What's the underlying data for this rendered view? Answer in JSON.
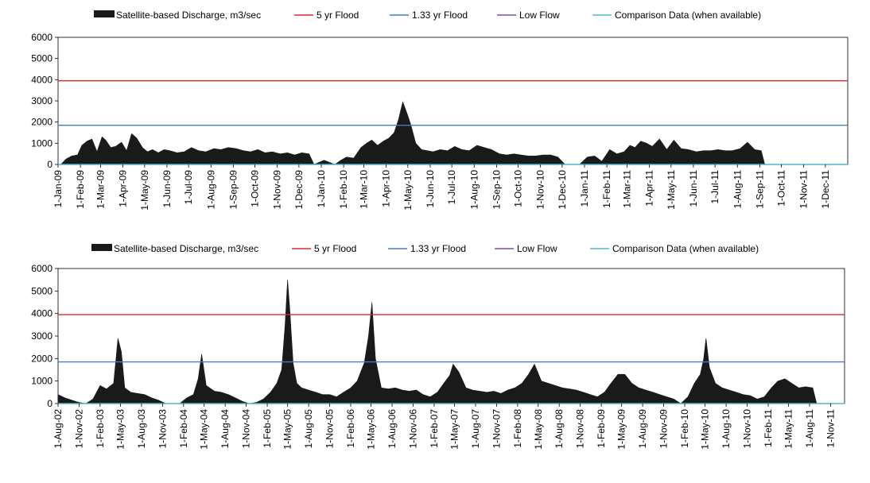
{
  "chart_data": [
    {
      "type": "area",
      "title": "",
      "xlabel": "",
      "ylabel": "",
      "ylim": [
        0,
        6000
      ],
      "yticks": [
        0,
        1000,
        2000,
        3000,
        4000,
        5000,
        6000
      ],
      "xlim": [
        "2009-01-01",
        "2012-01-01"
      ],
      "xticks": [
        "1-Jan-09",
        "1-Feb-09",
        "1-Mar-09",
        "1-Apr-09",
        "1-May-09",
        "1-Jun-09",
        "1-Jul-09",
        "1-Aug-09",
        "1-Sep-09",
        "1-Oct-09",
        "1-Nov-09",
        "1-Dec-09",
        "1-Jan-10",
        "1-Feb-10",
        "1-Mar-10",
        "1-Apr-10",
        "1-May-10",
        "1-Jun-10",
        "1-Jul-10",
        "1-Aug-10",
        "1-Sep-10",
        "1-Oct-10",
        "1-Nov-10",
        "1-Dec-10",
        "1-Jan-11",
        "1-Feb-11",
        "1-Mar-11",
        "1-Apr-11",
        "1-May-11",
        "1-Jun-11",
        "1-Jul-11",
        "1-Aug-11",
        "1-Sep-11",
        "1-Oct-11",
        "1-Nov-11",
        "1-Dec-11"
      ],
      "grid": false,
      "legend_position": "top",
      "legend": [
        {
          "label": "Satellite-based Discharge, m3/sec",
          "color": "#1a1a1a",
          "kind": "area"
        },
        {
          "label": "5 yr Flood",
          "color": "#e0282a",
          "kind": "line"
        },
        {
          "label": "1.33 yr Flood",
          "color": "#4a7bbf",
          "kind": "line"
        },
        {
          "label": "Low Flow",
          "color": "#7b4fa3",
          "kind": "line"
        },
        {
          "label": "Comparison Data (when available)",
          "color": "#4bb8c8",
          "kind": "line"
        }
      ],
      "reference_lines": {
        "five_yr_flood": 3950,
        "one_33_yr_flood": 1850,
        "low_flow": 0,
        "comparison": 0
      },
      "series": [
        {
          "name": "Satellite-based Discharge, m3/sec",
          "x": [
            "2009-01-05",
            "2009-01-12",
            "2009-01-20",
            "2009-01-28",
            "2009-02-03",
            "2009-02-10",
            "2009-02-17",
            "2009-02-24",
            "2009-03-03",
            "2009-03-08",
            "2009-03-15",
            "2009-03-22",
            "2009-03-30",
            "2009-04-06",
            "2009-04-13",
            "2009-04-20",
            "2009-04-28",
            "2009-05-05",
            "2009-05-12",
            "2009-05-20",
            "2009-05-28",
            "2009-06-05",
            "2009-06-15",
            "2009-06-25",
            "2009-07-05",
            "2009-07-15",
            "2009-07-25",
            "2009-08-05",
            "2009-08-15",
            "2009-08-25",
            "2009-09-05",
            "2009-09-15",
            "2009-09-25",
            "2009-10-05",
            "2009-10-15",
            "2009-10-25",
            "2009-11-05",
            "2009-11-15",
            "2009-11-25",
            "2009-12-05",
            "2009-12-15",
            "2009-12-22",
            "2010-01-05",
            "2010-01-12",
            "2010-01-20",
            "2010-01-28",
            "2010-02-05",
            "2010-02-15",
            "2010-02-25",
            "2010-03-05",
            "2010-03-12",
            "2010-03-20",
            "2010-03-28",
            "2010-04-05",
            "2010-04-12",
            "2010-04-18",
            "2010-04-24",
            "2010-04-30",
            "2010-05-05",
            "2010-05-12",
            "2010-05-20",
            "2010-05-28",
            "2010-06-05",
            "2010-06-15",
            "2010-06-25",
            "2010-07-05",
            "2010-07-15",
            "2010-07-25",
            "2010-08-05",
            "2010-08-15",
            "2010-08-25",
            "2010-09-05",
            "2010-09-15",
            "2010-09-25",
            "2010-10-05",
            "2010-10-15",
            "2010-10-25",
            "2010-11-05",
            "2010-11-15",
            "2010-11-25",
            "2010-12-05",
            "2010-12-15",
            "2010-12-25",
            "2011-01-05",
            "2011-01-15",
            "2011-01-25",
            "2011-02-05",
            "2011-02-15",
            "2011-02-25",
            "2011-03-05",
            "2011-03-12",
            "2011-03-20",
            "2011-03-28",
            "2011-04-05",
            "2011-04-15",
            "2011-04-25",
            "2011-05-05",
            "2011-05-15",
            "2011-05-25",
            "2011-06-05",
            "2011-06-15",
            "2011-06-25",
            "2011-07-05",
            "2011-07-15",
            "2011-07-25",
            "2011-08-05",
            "2011-08-15",
            "2011-08-25",
            "2011-09-03",
            "2011-09-08"
          ],
          "values": [
            0,
            250,
            400,
            450,
            900,
            1100,
            1200,
            600,
            1300,
            1150,
            800,
            850,
            1050,
            650,
            1450,
            1250,
            800,
            600,
            700,
            550,
            700,
            650,
            550,
            600,
            800,
            650,
            600,
            750,
            700,
            800,
            750,
            650,
            600,
            700,
            550,
            600,
            500,
            550,
            450,
            550,
            500,
            0,
            200,
            100,
            0,
            200,
            350,
            300,
            800,
            1000,
            1150,
            900,
            1100,
            1250,
            1500,
            2100,
            2950,
            2400,
            1900,
            1000,
            700,
            650,
            600,
            700,
            650,
            850,
            700,
            650,
            900,
            800,
            700,
            500,
            450,
            500,
            450,
            400,
            400,
            450,
            450,
            350,
            0,
            0,
            0,
            350,
            400,
            150,
            700,
            500,
            600,
            900,
            800,
            1100,
            1000,
            850,
            1200,
            700,
            1150,
            750,
            700,
            600,
            650,
            650,
            700,
            650,
            650,
            750,
            1050,
            700,
            650,
            0
          ],
          "gaps_after": []
        }
      ]
    },
    {
      "type": "area",
      "title": "",
      "xlabel": "",
      "ylabel": "",
      "ylim": [
        0,
        6000
      ],
      "yticks": [
        0,
        1000,
        2000,
        3000,
        4000,
        5000,
        6000
      ],
      "xlim": [
        "2002-08-01",
        "2012-01-01"
      ],
      "xticks": [
        "1-Aug-02",
        "1-Nov-02",
        "1-Feb-03",
        "1-May-03",
        "1-Aug-03",
        "1-Nov-03",
        "1-Feb-04",
        "1-May-04",
        "1-Aug-04",
        "1-Nov-04",
        "1-Feb-05",
        "1-May-05",
        "1-Aug-05",
        "1-Nov-05",
        "1-Feb-06",
        "1-May-06",
        "1-Aug-06",
        "1-Nov-06",
        "1-Feb-07",
        "1-May-07",
        "1-Aug-07",
        "1-Nov-07",
        "1-Feb-08",
        "1-May-08",
        "1-Aug-08",
        "1-Nov-08",
        "1-Feb-09",
        "1-May-09",
        "1-Aug-09",
        "1-Nov-09",
        "1-Feb-10",
        "1-May-10",
        "1-Aug-10",
        "1-Nov-10",
        "1-Feb-11",
        "1-May-11",
        "1-Aug-11",
        "1-Nov-11"
      ],
      "grid": false,
      "legend_position": "top",
      "legend": [
        {
          "label": "Satellite-based Discharge, m3/sec",
          "color": "#1a1a1a",
          "kind": "area"
        },
        {
          "label": "5 yr Flood",
          "color": "#e0282a",
          "kind": "line"
        },
        {
          "label": "1.33 yr Flood",
          "color": "#4a7bbf",
          "kind": "line"
        },
        {
          "label": "Low Flow",
          "color": "#7b4fa3",
          "kind": "line"
        },
        {
          "label": "Comparison Data (when available)",
          "color": "#4bb8c8",
          "kind": "line"
        }
      ],
      "reference_lines": {
        "five_yr_flood": 3950,
        "one_33_yr_flood": 1850,
        "low_flow": 0,
        "comparison": 0
      },
      "series": [
        {
          "name": "Satellite-based Discharge, m3/sec",
          "x": [
            "2002-08-01",
            "2002-09-01",
            "2002-10-01",
            "2002-11-01",
            "2002-12-01",
            "2003-01-01",
            "2003-02-01",
            "2003-03-01",
            "2003-04-01",
            "2003-04-20",
            "2003-05-05",
            "2003-05-20",
            "2003-06-15",
            "2003-07-15",
            "2003-08-15",
            "2003-09-15",
            "2003-10-15",
            "2003-11-15",
            "2003-12-15",
            "2004-01-15",
            "2004-02-15",
            "2004-03-15",
            "2004-04-05",
            "2004-04-20",
            "2004-05-10",
            "2004-06-15",
            "2004-07-15",
            "2004-08-15",
            "2004-09-15",
            "2004-10-15",
            "2004-11-15",
            "2004-12-15",
            "2005-01-15",
            "2005-02-15",
            "2005-03-15",
            "2005-04-05",
            "2005-04-20",
            "2005-05-01",
            "2005-05-10",
            "2005-05-25",
            "2005-06-10",
            "2005-07-01",
            "2005-08-01",
            "2005-09-01",
            "2005-10-01",
            "2005-11-01",
            "2005-12-01",
            "2006-01-01",
            "2006-02-01",
            "2006-03-01",
            "2006-04-01",
            "2006-04-20",
            "2006-05-05",
            "2006-05-20",
            "2006-06-15",
            "2006-07-15",
            "2006-08-15",
            "2006-09-15",
            "2006-10-15",
            "2006-11-15",
            "2006-12-15",
            "2007-01-15",
            "2007-02-15",
            "2007-03-15",
            "2007-04-10",
            "2007-04-25",
            "2007-05-20",
            "2007-06-20",
            "2007-07-20",
            "2007-08-20",
            "2007-09-20",
            "2007-10-20",
            "2007-11-20",
            "2007-12-20",
            "2008-01-20",
            "2008-02-20",
            "2008-03-20",
            "2008-04-15",
            "2008-05-15",
            "2008-06-15",
            "2008-07-15",
            "2008-08-15",
            "2008-09-15",
            "2008-10-15",
            "2008-11-15",
            "2008-12-15",
            "2009-01-15",
            "2009-02-15",
            "2009-03-15",
            "2009-04-15",
            "2009-05-15",
            "2009-06-15",
            "2009-07-15",
            "2009-08-15",
            "2009-09-15",
            "2009-10-15",
            "2009-11-15",
            "2009-12-15",
            "2010-01-15",
            "2010-02-15",
            "2010-03-15",
            "2010-04-10",
            "2010-04-25",
            "2010-05-05",
            "2010-05-20",
            "2010-06-15",
            "2010-07-15",
            "2010-08-15",
            "2010-09-15",
            "2010-10-15",
            "2010-11-15",
            "2010-12-15",
            "2011-01-15",
            "2011-02-15",
            "2011-03-15",
            "2011-04-15",
            "2011-05-15",
            "2011-06-15",
            "2011-07-15",
            "2011-08-15",
            "2011-09-01"
          ],
          "values": [
            400,
            250,
            150,
            50,
            0,
            200,
            800,
            650,
            900,
            2900,
            2300,
            700,
            500,
            450,
            400,
            250,
            150,
            0,
            0,
            0,
            250,
            400,
            1100,
            2200,
            800,
            550,
            500,
            400,
            250,
            100,
            0,
            50,
            200,
            500,
            900,
            1500,
            3500,
            5500,
            4300,
            1800,
            900,
            700,
            600,
            500,
            400,
            400,
            300,
            500,
            700,
            1000,
            1800,
            3000,
            4500,
            2000,
            700,
            650,
            700,
            600,
            550,
            600,
            400,
            300,
            500,
            900,
            1250,
            1750,
            1400,
            700,
            600,
            550,
            500,
            550,
            450,
            600,
            700,
            900,
            1300,
            1750,
            1000,
            900,
            800,
            700,
            650,
            600,
            500,
            400,
            300,
            500,
            900,
            1300,
            1300,
            900,
            700,
            600,
            500,
            400,
            300,
            200,
            0,
            300,
            900,
            1300,
            2000,
            2900,
            1600,
            900,
            700,
            600,
            500,
            400,
            350,
            200,
            300,
            700,
            1000,
            1100,
            900,
            700,
            750,
            700,
            0
          ],
          "gaps_after": []
        }
      ]
    }
  ]
}
